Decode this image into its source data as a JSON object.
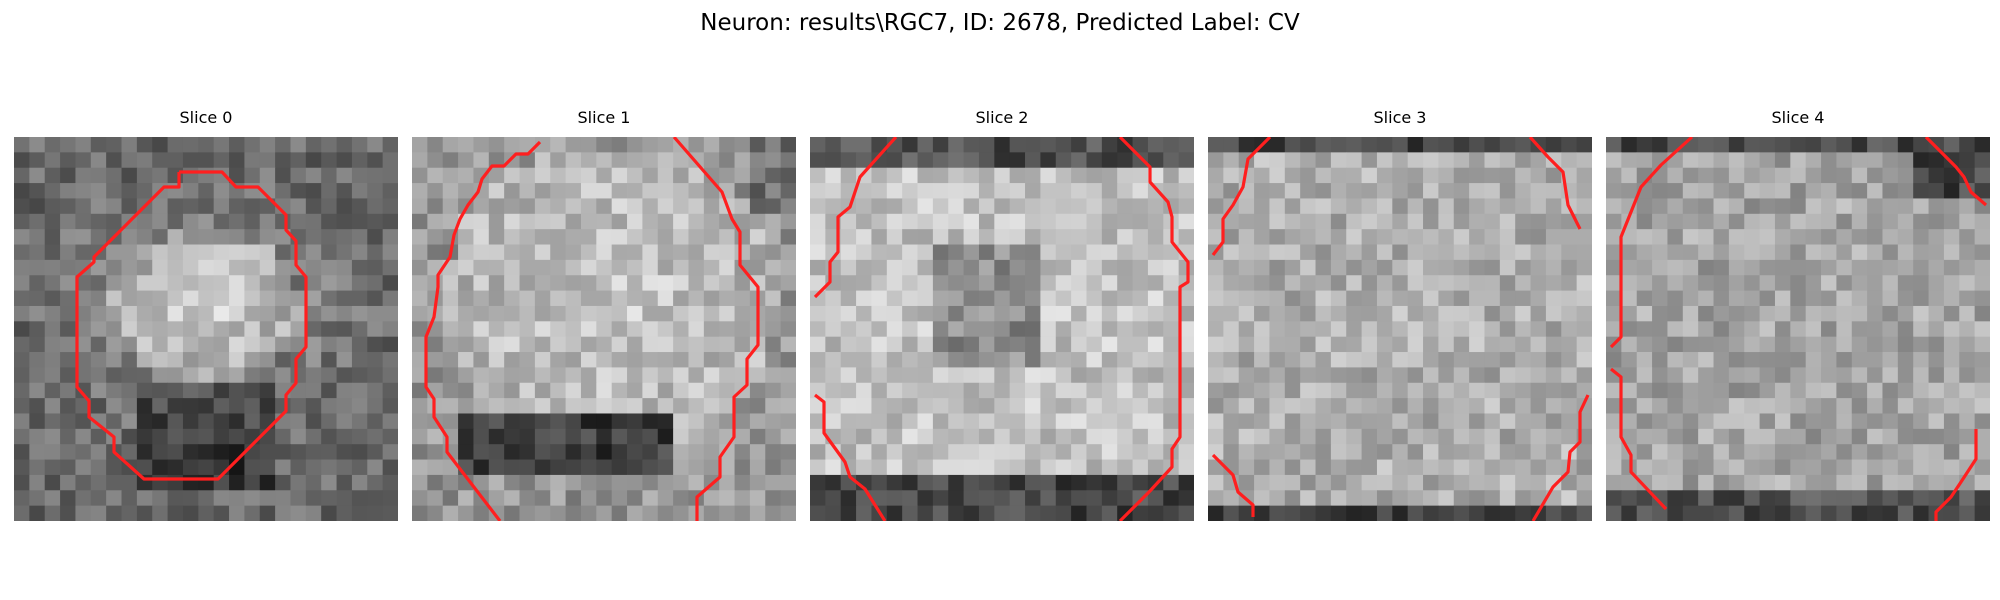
{
  "figure": {
    "title": "Neuron: results\\RGC7, ID: 2678, Predicted Label: CV"
  },
  "colors": {
    "contour": "#ff1f1f",
    "background": "#ffffff"
  },
  "panels": [
    {
      "title": "Slice 0"
    },
    {
      "title": "Slice 1"
    },
    {
      "title": "Slice 2"
    },
    {
      "title": "Slice 3"
    },
    {
      "title": "Slice 4"
    }
  ]
}
